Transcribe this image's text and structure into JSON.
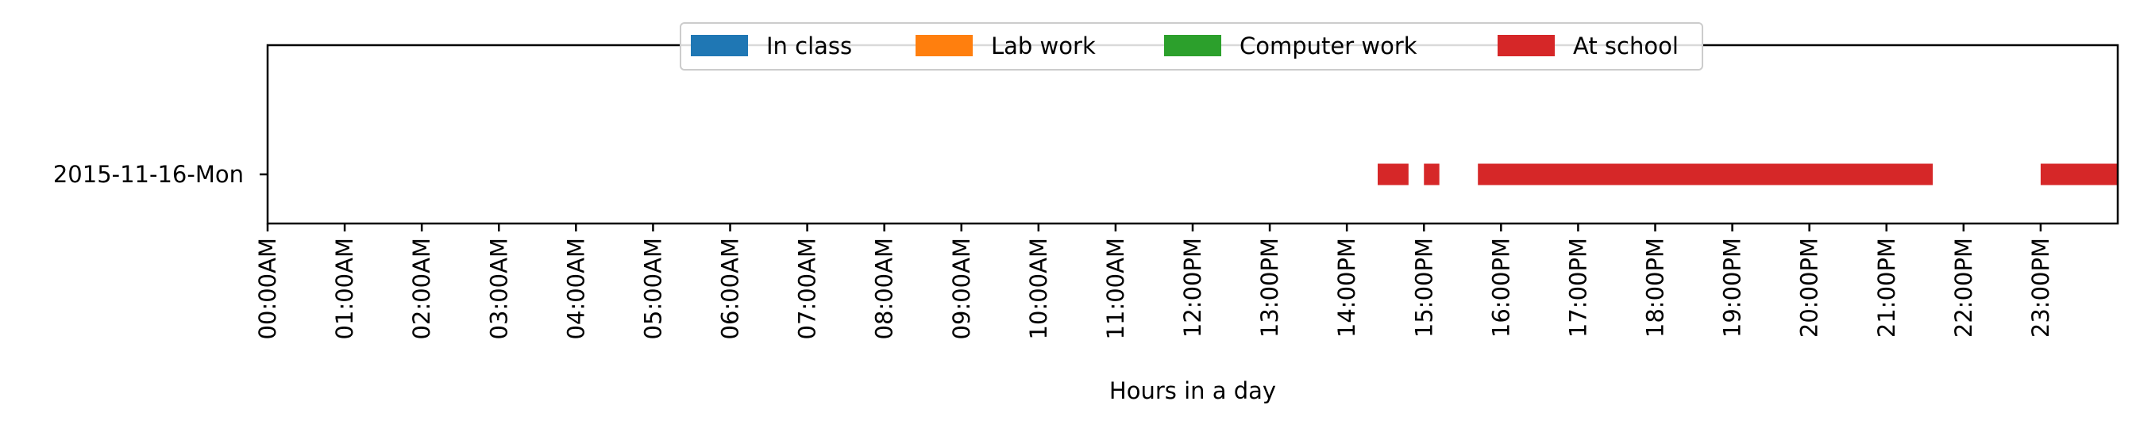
{
  "chart_data": {
    "type": "bar",
    "orientation": "horizontal-timeline",
    "xlabel": "Hours in a day",
    "ylabel": "",
    "xlim": [
      0,
      24
    ],
    "grid": false,
    "legend_position": "top-center",
    "categories": [
      "2015-11-16-Mon"
    ],
    "x_tick_values": [
      0,
      1,
      2,
      3,
      4,
      5,
      6,
      7,
      8,
      9,
      10,
      11,
      12,
      13,
      14,
      15,
      16,
      17,
      18,
      19,
      20,
      21,
      22,
      23
    ],
    "x_tick_labels": [
      "00:00AM",
      "01:00AM",
      "02:00AM",
      "03:00AM",
      "04:00AM",
      "05:00AM",
      "06:00AM",
      "07:00AM",
      "08:00AM",
      "09:00AM",
      "10:00AM",
      "11:00AM",
      "12:00PM",
      "13:00PM",
      "14:00PM",
      "15:00PM",
      "16:00PM",
      "17:00PM",
      "18:00PM",
      "19:00PM",
      "20:00PM",
      "21:00PM",
      "22:00PM",
      "23:00PM"
    ],
    "series": [
      {
        "name": "In class",
        "color": "#1f77b4",
        "intervals": []
      },
      {
        "name": "Lab work",
        "color": "#ff7f0e",
        "intervals": []
      },
      {
        "name": "Computer work",
        "color": "#2ca02c",
        "intervals": []
      },
      {
        "name": "At school",
        "color": "#d62728",
        "intervals": [
          {
            "category": "2015-11-16-Mon",
            "start": 14.4,
            "end": 14.8
          },
          {
            "category": "2015-11-16-Mon",
            "start": 15.0,
            "end": 15.2
          },
          {
            "category": "2015-11-16-Mon",
            "start": 15.7,
            "end": 21.6
          },
          {
            "category": "2015-11-16-Mon",
            "start": 23.0,
            "end": 24.0
          }
        ]
      }
    ]
  }
}
